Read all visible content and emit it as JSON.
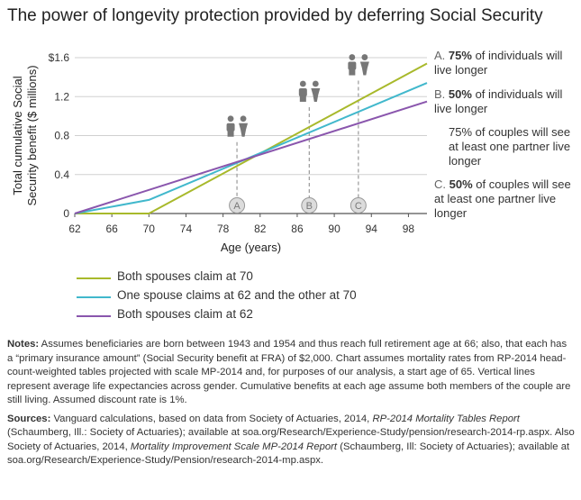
{
  "title": "The power of longevity protection provided by deferring Social Security",
  "chart_data": {
    "type": "line",
    "title": "The power of longevity protection provided by deferring Social Security",
    "xlabel": "Age (years)",
    "ylabel_line1": "Total cumulative Social",
    "ylabel_line2": "Security benefit ($ millions)",
    "xlim": [
      62,
      100
    ],
    "ylim": [
      0,
      1.6
    ],
    "x_ticks": [
      62,
      66,
      70,
      74,
      78,
      82,
      86,
      90,
      94,
      98
    ],
    "y_ticks": [
      {
        "value": 0,
        "label": "0"
      },
      {
        "value": 0.4,
        "label": "0.4"
      },
      {
        "value": 0.8,
        "label": "0.8"
      },
      {
        "value": 1.2,
        "label": "1.2"
      },
      {
        "value": 1.6,
        "label": "$1.6"
      }
    ],
    "grid": "horizontal",
    "series": [
      {
        "name": "Both spouses claim at 70",
        "color": "#a8b92b",
        "x": [
          62,
          70,
          100
        ],
        "y": [
          0,
          0,
          1.54
        ]
      },
      {
        "name": "One spouse claims at 62 and the other at 70",
        "color": "#41b8cc",
        "x": [
          62,
          70,
          100
        ],
        "y": [
          0,
          0.14,
          1.34
        ]
      },
      {
        "name": "Both spouses claim at 62",
        "color": "#8a56ad",
        "x": [
          62,
          100
        ],
        "y": [
          0,
          1.15
        ]
      }
    ],
    "markers": [
      {
        "label": "A",
        "x": 79.5
      },
      {
        "label": "B",
        "x": 87.3
      },
      {
        "label": "C",
        "x": 92.6
      }
    ]
  },
  "annotations": [
    {
      "letter": "A.",
      "pct": "75%",
      "text": " of individuals will live longer"
    },
    {
      "letter": "B.",
      "pct": "50%",
      "text": " of individuals will live longer"
    },
    {
      "letter": "",
      "pct": "",
      "text": "75% of couples will see at least one partner live longer"
    },
    {
      "letter": "C.",
      "pct": "50%",
      "text": " of couples will see at least one partner live longer"
    }
  ],
  "notes": {
    "label": "Notes:",
    "text": " Assumes beneficiaries are born between 1943 and 1954 and thus reach full retirement age at 66; also, that each has a “primary insurance amount” (Social Security benefit at FRA) of $2,000. Chart assumes mortality rates from RP-2014 head-count-weighted tables projected with scale MP-2014 and, for purposes of our analysis, a start age of 65. Vertical lines represent average life expectancies across gender. Cumulative benefits at each age assume both members of the couple are still living. Assumed discount rate is 1%."
  },
  "sources": {
    "label": "Sources:",
    "part1": " Vanguard calculations, based on data from Society of Actuaries, 2014, ",
    "ital1": "RP-2014 Mortality Tables Report",
    "part2": " (Schaumberg, Ill.: Society of Actuaries); available at soa.org/Research/Experience-Study/pension/research-2014-rp.aspx. Also Society of Actuaries, 2014, ",
    "ital2": "Mortality Improvement Scale MP-2014 Report",
    "part3": " (Schaumberg, Ill: Society of Actuaries); available at soa.org/Research/Experience-Study/Pension/research-2014-mp.aspx."
  }
}
